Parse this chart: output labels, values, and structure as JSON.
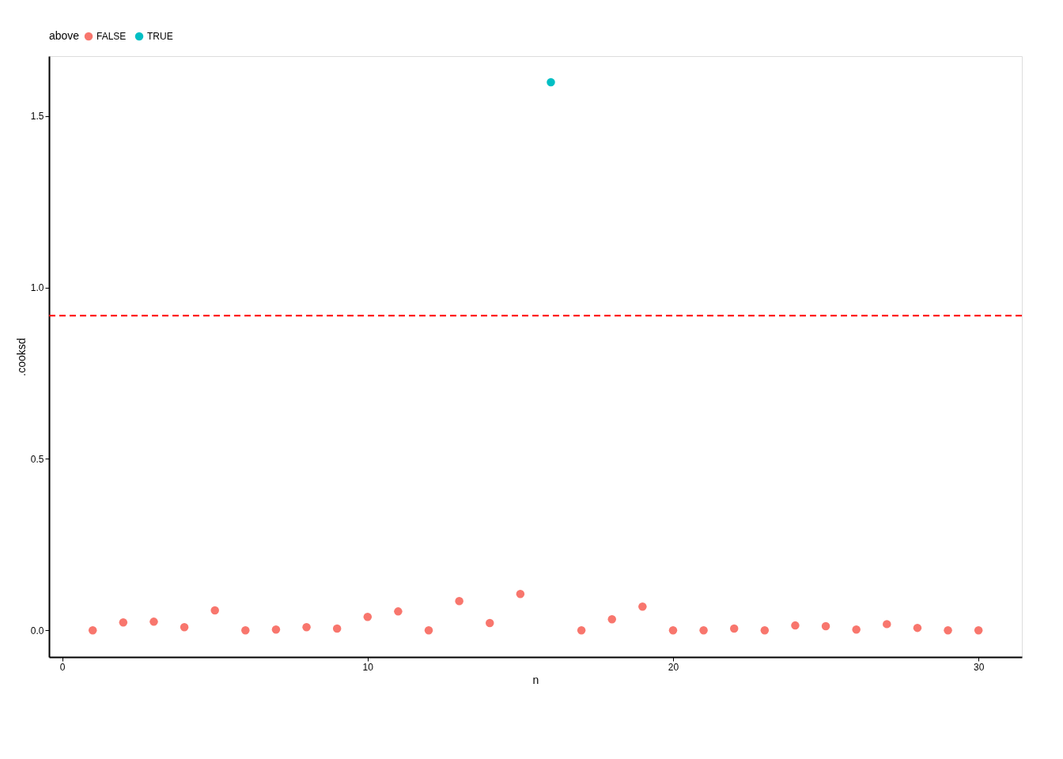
{
  "chart_data": {
    "type": "scatter",
    "xlabel": "n",
    "ylabel": ".cooksd",
    "legend_title": "above",
    "legend": "top",
    "grid": false,
    "marker": "circle",
    "xlim": [
      -0.43,
      31.42
    ],
    "ylim": [
      -0.078,
      1.675
    ],
    "xticks": [
      0,
      10,
      20,
      30
    ],
    "yticks": [
      {
        "value": 0,
        "label": "0.0"
      },
      0.5,
      {
        "value": 1,
        "label": "1.0"
      },
      1.5
    ],
    "ref_lines": [
      {
        "axis": "y",
        "value": 0.918,
        "color": "#ff0000",
        "line_style": "dashed"
      }
    ],
    "series": [
      {
        "name": "FALSE",
        "color": "#f8766d",
        "x": [
          1,
          2,
          3,
          4,
          5,
          6,
          7,
          8,
          9,
          10,
          11,
          12,
          13,
          14,
          15,
          17,
          18,
          19,
          20,
          21,
          22,
          23,
          24,
          25,
          26,
          27,
          28,
          29,
          30
        ],
        "values": [
          0.0,
          0.023,
          0.025,
          0.009,
          0.058,
          0.0,
          0.002,
          0.009,
          0.005,
          0.039,
          0.055,
          0.0,
          0.085,
          0.021,
          0.106,
          0.0,
          0.032,
          0.069,
          0.0,
          0.0,
          0.005,
          0.0,
          0.014,
          0.012,
          0.002,
          0.018,
          0.007,
          0.0,
          0.0
        ]
      },
      {
        "name": "TRUE",
        "color": "#00bfc4",
        "x": [
          16
        ],
        "values": [
          1.599
        ]
      }
    ]
  }
}
